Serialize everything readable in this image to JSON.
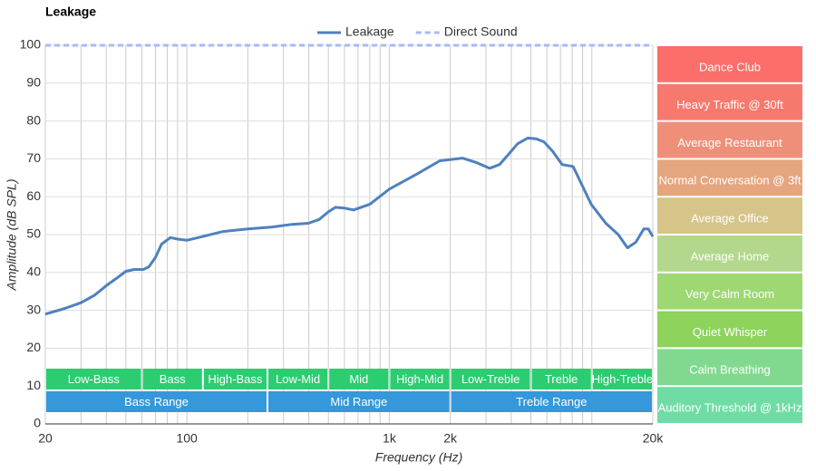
{
  "chart_data": {
    "type": "line",
    "title": "Leakage",
    "x_label": "Frequency (Hz)",
    "y_label": "Amplitude (dB SPL)",
    "xscale": "log",
    "xlim": [
      20,
      20000
    ],
    "xticks": [
      20,
      100,
      {
        "value": 1000,
        "label": "1k"
      },
      {
        "value": 2000,
        "label": "2k"
      },
      {
        "value": 20000,
        "label": "20k"
      }
    ],
    "xgrid": [
      30,
      40,
      50,
      60,
      70,
      80,
      90,
      200,
      300,
      400,
      500,
      600,
      700,
      800,
      900,
      3000,
      4000,
      5000,
      6000,
      7000,
      8000,
      9000,
      10000
    ],
    "ylim": [
      0,
      100
    ],
    "yticks": [
      0,
      10,
      20,
      30,
      40,
      50,
      60,
      70,
      80,
      90,
      100
    ],
    "grid": true,
    "series": [
      {
        "name": "Leakage",
        "color": "#4f81bd",
        "style": "solid",
        "x": [
          20,
          25,
          30,
          35,
          40,
          45,
          50,
          55,
          61,
          65,
          70,
          75,
          83,
          90,
          100,
          120,
          150,
          200,
          264,
          330,
          398,
          450,
          500,
          542,
          600,
          665,
          800,
          1000,
          1371,
          1775,
          2296,
          2700,
          3128,
          3500,
          3846,
          4300,
          4820,
          5300,
          5806,
          6400,
          7140,
          8077,
          9930,
          11720,
          13500,
          15000,
          16500,
          18060,
          19000,
          20000
        ],
        "values": [
          29,
          30.5,
          32,
          34,
          36.5,
          38.5,
          40.3,
          40.8,
          40.8,
          41.5,
          44,
          47.5,
          49.2,
          48.8,
          48.5,
          49.5,
          50.8,
          51.5,
          52,
          52.7,
          53,
          54,
          56,
          57.2,
          57,
          56.5,
          58,
          62,
          66,
          69.5,
          70.2,
          69,
          67.5,
          68.5,
          71,
          74,
          75.5,
          75.3,
          74.5,
          72,
          68.5,
          68,
          58,
          53,
          50,
          46.5,
          48,
          51.5,
          51.5,
          49.5
        ]
      },
      {
        "name": "Direct Sound",
        "color": "#a9b9f5",
        "style": "dashed",
        "x": [
          20,
          20000
        ],
        "values": [
          100,
          100
        ]
      }
    ],
    "frequency_bands": [
      {
        "label": "Low-Bass",
        "from": 20,
        "to": 60
      },
      {
        "label": "Bass",
        "from": 60,
        "to": 120
      },
      {
        "label": "High-Bass",
        "from": 120,
        "to": 250
      },
      {
        "label": "Low-Mid",
        "from": 250,
        "to": 500
      },
      {
        "label": "Mid",
        "from": 500,
        "to": 1000
      },
      {
        "label": "High-Mid",
        "from": 1000,
        "to": 2000
      },
      {
        "label": "Low-Treble",
        "from": 2000,
        "to": 5000
      },
      {
        "label": "Treble",
        "from": 5000,
        "to": 10000
      },
      {
        "label": "High-Treble",
        "from": 10000,
        "to": 20000
      }
    ],
    "band_color": "#2ecc71",
    "frequency_ranges": [
      {
        "label": "Bass Range",
        "from": 20,
        "to": 250
      },
      {
        "label": "Mid Range",
        "from": 250,
        "to": 2000
      },
      {
        "label": "Treble Range",
        "from": 2000,
        "to": 20000
      }
    ],
    "range_color": "#3498db",
    "reference_levels": [
      {
        "label": "Dance Club",
        "from": 90,
        "to": 100,
        "color": "#fb6e69"
      },
      {
        "label": "Heavy Traffic @ 30ft",
        "from": 80,
        "to": 90,
        "color": "#f7786c"
      },
      {
        "label": "Average Restaurant",
        "from": 70,
        "to": 80,
        "color": "#ef8f79"
      },
      {
        "label": "Normal Conversation @ 3ft",
        "from": 60,
        "to": 70,
        "color": "#e5a57f"
      },
      {
        "label": "Average Office",
        "from": 50,
        "to": 60,
        "color": "#d6c489"
      },
      {
        "label": "Average Home",
        "from": 40,
        "to": 50,
        "color": "#b3d88d"
      },
      {
        "label": "Very Calm Room",
        "from": 30,
        "to": 40,
        "color": "#9dd872"
      },
      {
        "label": "Quiet Whisper",
        "from": 20,
        "to": 30,
        "color": "#8dd35c"
      },
      {
        "label": "Calm Breathing",
        "from": 10,
        "to": 20,
        "color": "#80d98f"
      },
      {
        "label": "Auditory Threshold @ 1kHz",
        "from": 0,
        "to": 10,
        "color": "#6fdca5"
      }
    ]
  }
}
